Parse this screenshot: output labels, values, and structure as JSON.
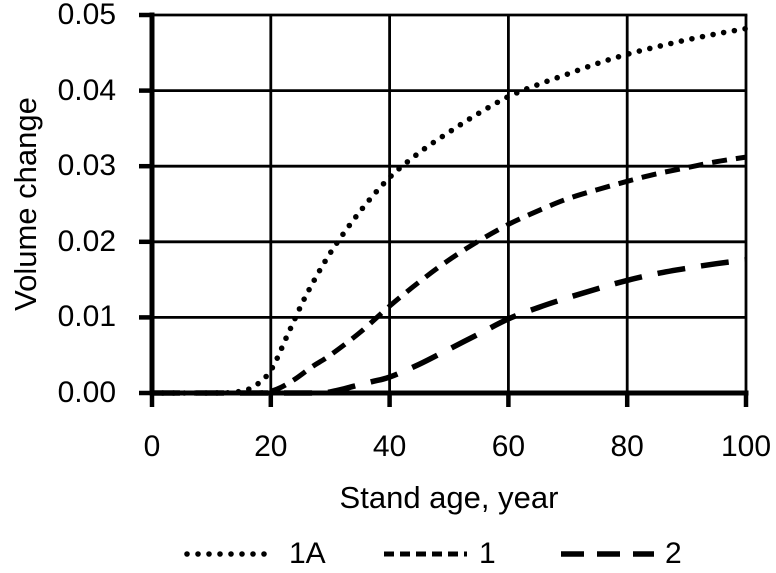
{
  "figure": {
    "background": "#ffffff",
    "ink_color": "#000000"
  },
  "chart_data": {
    "type": "line",
    "title": "",
    "xlabel": "Stand age, year",
    "ylabel": "Volume change",
    "xlim": [
      0,
      100
    ],
    "ylim": [
      0,
      0.05
    ],
    "xticks": [
      0,
      20,
      40,
      60,
      80,
      100
    ],
    "ytick_labels": [
      "0.00",
      "0.01",
      "0.02",
      "0.03",
      "0.04",
      "0.05"
    ],
    "ytick_values": [
      0,
      0.01,
      0.02,
      0.03,
      0.04,
      0.05
    ],
    "grid": true,
    "legend_position": "bottom",
    "series": [
      {
        "name": "1A",
        "style": "dotted",
        "points": [
          [
            0,
            0
          ],
          [
            5,
            0
          ],
          [
            10,
            0
          ],
          [
            14,
            0.0001
          ],
          [
            17,
            0.0008
          ],
          [
            20,
            0.003
          ],
          [
            23,
            0.008
          ],
          [
            26,
            0.013
          ],
          [
            30,
            0.0185
          ],
          [
            35,
            0.024
          ],
          [
            40,
            0.0285
          ],
          [
            45,
            0.0318
          ],
          [
            50,
            0.0345
          ],
          [
            55,
            0.037
          ],
          [
            60,
            0.0392
          ],
          [
            65,
            0.0408
          ],
          [
            70,
            0.0422
          ],
          [
            75,
            0.0436
          ],
          [
            80,
            0.0448
          ],
          [
            85,
            0.0458
          ],
          [
            90,
            0.0467
          ],
          [
            95,
            0.0475
          ],
          [
            100,
            0.0482
          ]
        ]
      },
      {
        "name": "1",
        "style": "dash",
        "points": [
          [
            0,
            0
          ],
          [
            8,
            0
          ],
          [
            14,
            0
          ],
          [
            18,
            0
          ],
          [
            21,
            0.0005
          ],
          [
            24,
            0.0018
          ],
          [
            27,
            0.0035
          ],
          [
            30,
            0.005
          ],
          [
            35,
            0.008
          ],
          [
            40,
            0.0115
          ],
          [
            45,
            0.0147
          ],
          [
            50,
            0.0176
          ],
          [
            55,
            0.0201
          ],
          [
            60,
            0.0223
          ],
          [
            65,
            0.0241
          ],
          [
            70,
            0.0257
          ],
          [
            75,
            0.0269
          ],
          [
            80,
            0.028
          ],
          [
            85,
            0.029
          ],
          [
            90,
            0.0298
          ],
          [
            95,
            0.0306
          ],
          [
            100,
            0.0312
          ]
        ]
      },
      {
        "name": "2",
        "style": "long-dash",
        "points": [
          [
            0,
            0
          ],
          [
            10,
            0
          ],
          [
            20,
            0
          ],
          [
            28,
            0
          ],
          [
            31,
            0.0003
          ],
          [
            34,
            0.0009
          ],
          [
            37,
            0.0015
          ],
          [
            40,
            0.0021
          ],
          [
            45,
            0.0038
          ],
          [
            50,
            0.0058
          ],
          [
            55,
            0.0078
          ],
          [
            60,
            0.0098
          ],
          [
            65,
            0.0113
          ],
          [
            70,
            0.0126
          ],
          [
            75,
            0.0138
          ],
          [
            80,
            0.0149
          ],
          [
            85,
            0.0158
          ],
          [
            90,
            0.0165
          ],
          [
            95,
            0.0171
          ],
          [
            100,
            0.0176
          ]
        ]
      }
    ]
  }
}
